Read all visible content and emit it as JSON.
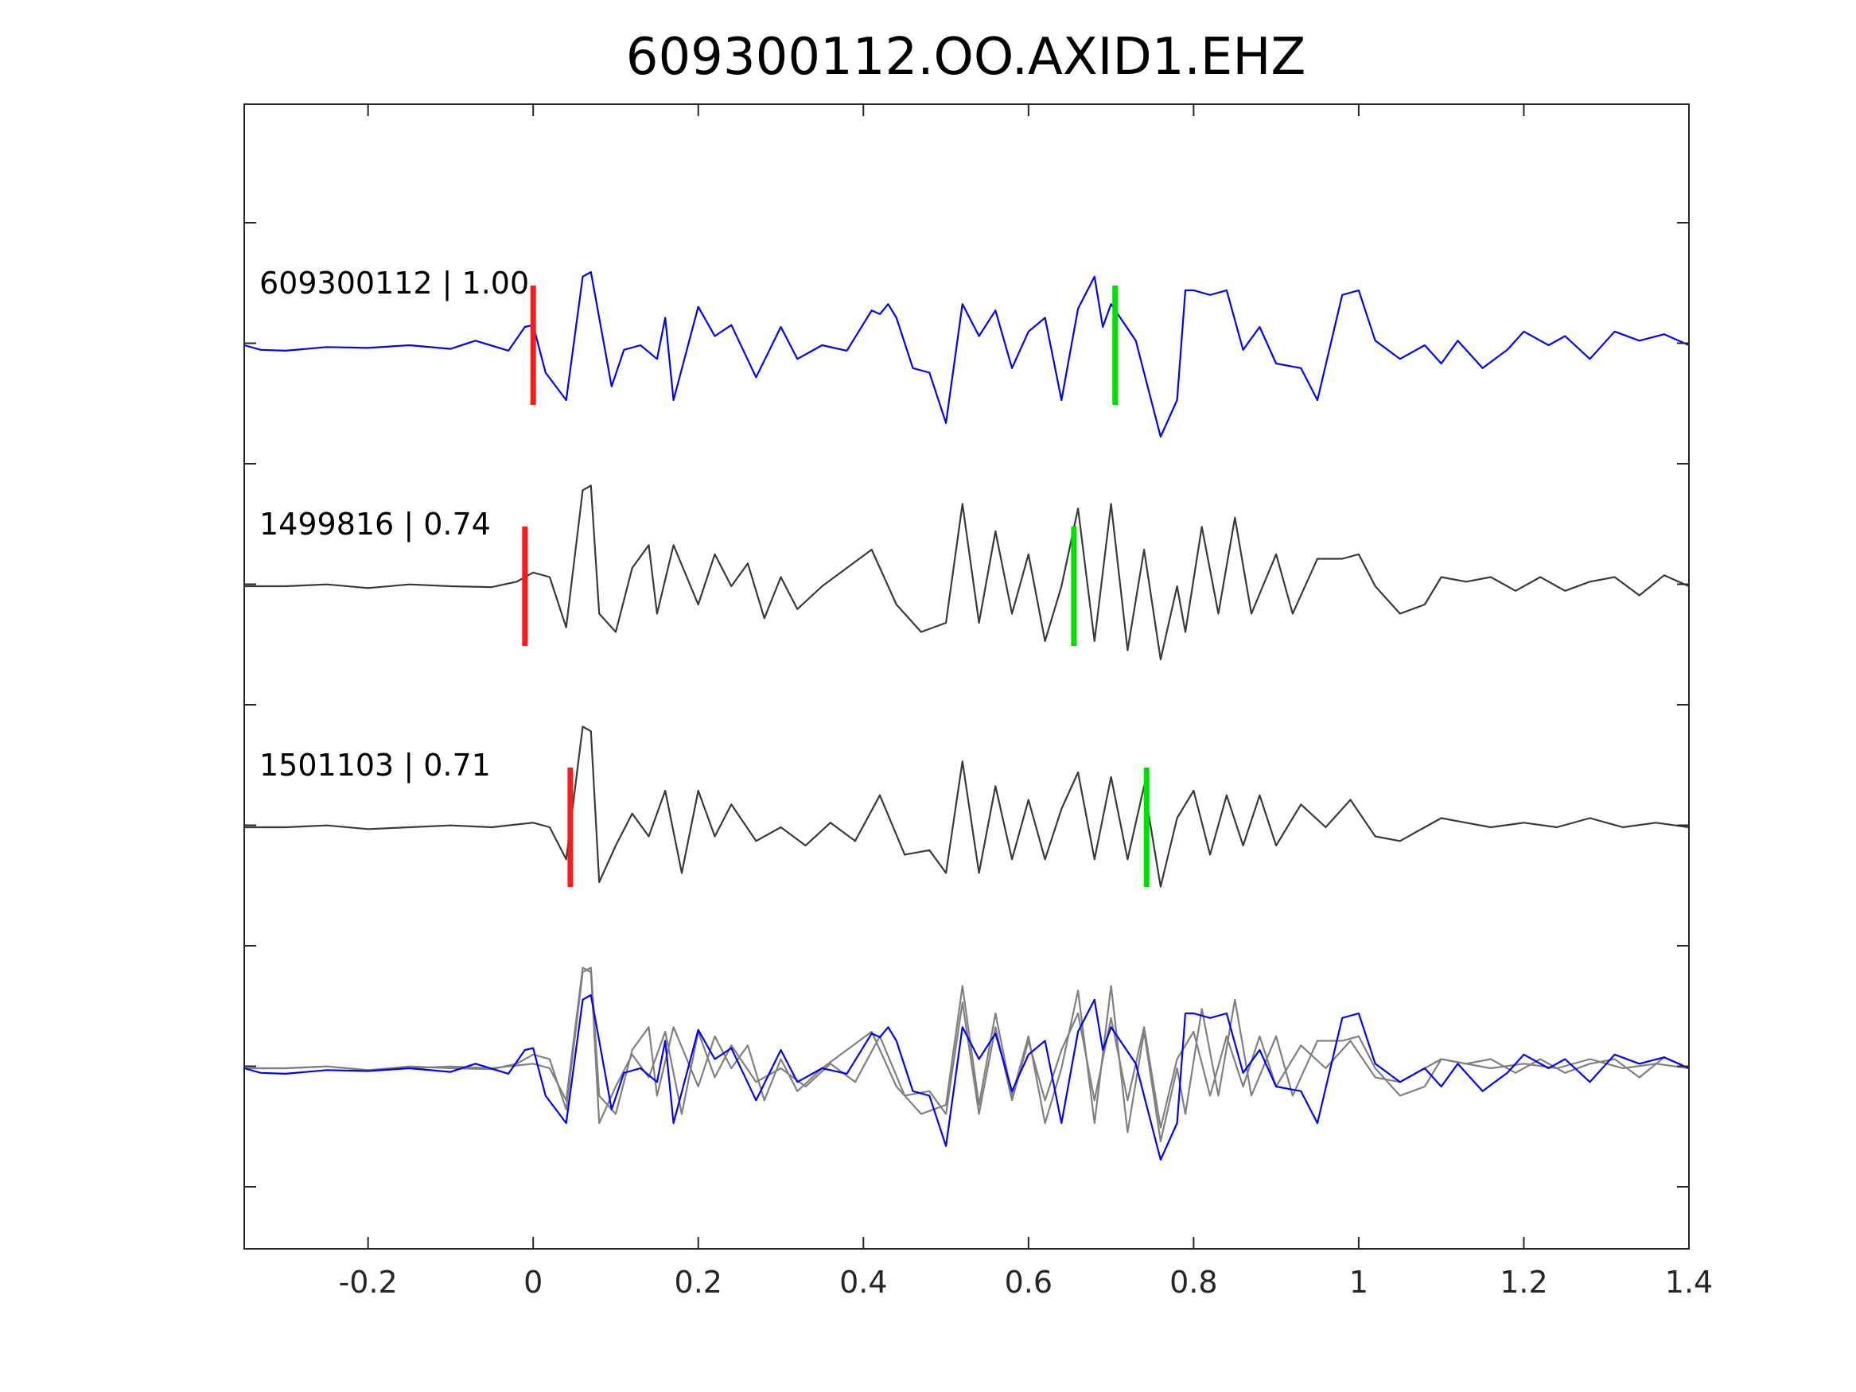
{
  "chart_data": {
    "type": "line",
    "title": "609300112.OO.AXID1.EHZ",
    "xlabel": "",
    "ylabel": "",
    "xlim": [
      -0.35,
      1.4
    ],
    "x_ticks": [
      -0.2,
      0,
      0.2,
      0.4,
      0.6,
      0.8,
      1,
      1.2,
      1.4
    ],
    "x_tick_labels": [
      "-0.2",
      "0",
      "0.2",
      "0.4",
      "0.6",
      "0.8",
      "1",
      "1.2",
      "1.4"
    ],
    "y_tick_count": 9,
    "grid": false,
    "legend": "none",
    "colors": {
      "template": "#0000ff",
      "detection": "#3a3a3a",
      "overlay": "#808080",
      "p_pick": "#ff1a1a",
      "s_pick": "#00dd00",
      "axis": "#262626"
    },
    "traces": [
      {
        "label": "609300112 | 1.00",
        "color": "template",
        "row": 1,
        "p_pick": 0.0,
        "s_pick": 0.705,
        "points": [
          [
            -0.35,
            0.0
          ],
          [
            -0.33,
            -0.05
          ],
          [
            -0.3,
            -0.06
          ],
          [
            -0.25,
            -0.02
          ],
          [
            -0.2,
            -0.03
          ],
          [
            -0.15,
            0.0
          ],
          [
            -0.1,
            -0.04
          ],
          [
            -0.07,
            0.05
          ],
          [
            -0.03,
            -0.06
          ],
          [
            -0.01,
            0.2
          ],
          [
            0.0,
            0.22
          ],
          [
            0.015,
            -0.3
          ],
          [
            0.04,
            -0.6
          ],
          [
            0.06,
            0.75
          ],
          [
            0.07,
            0.8
          ],
          [
            0.095,
            -0.45
          ],
          [
            0.11,
            -0.05
          ],
          [
            0.13,
            0.0
          ],
          [
            0.15,
            -0.15
          ],
          [
            0.16,
            0.3
          ],
          [
            0.17,
            -0.6
          ],
          [
            0.2,
            0.42
          ],
          [
            0.22,
            0.1
          ],
          [
            0.24,
            0.22
          ],
          [
            0.27,
            -0.35
          ],
          [
            0.3,
            0.2
          ],
          [
            0.32,
            -0.15
          ],
          [
            0.35,
            0.0
          ],
          [
            0.38,
            -0.06
          ],
          [
            0.41,
            0.38
          ],
          [
            0.42,
            0.34
          ],
          [
            0.43,
            0.45
          ],
          [
            0.44,
            0.3
          ],
          [
            0.46,
            -0.25
          ],
          [
            0.48,
            -0.3
          ],
          [
            0.5,
            -0.85
          ],
          [
            0.52,
            0.45
          ],
          [
            0.54,
            0.1
          ],
          [
            0.56,
            0.38
          ],
          [
            0.58,
            -0.25
          ],
          [
            0.6,
            0.15
          ],
          [
            0.62,
            0.3
          ],
          [
            0.64,
            -0.6
          ],
          [
            0.66,
            0.4
          ],
          [
            0.68,
            0.75
          ],
          [
            0.69,
            0.2
          ],
          [
            0.7,
            0.45
          ],
          [
            0.73,
            0.05
          ],
          [
            0.76,
            -1.0
          ],
          [
            0.78,
            -0.6
          ],
          [
            0.79,
            0.6
          ],
          [
            0.8,
            0.6
          ],
          [
            0.82,
            0.55
          ],
          [
            0.84,
            0.6
          ],
          [
            0.86,
            -0.05
          ],
          [
            0.88,
            0.2
          ],
          [
            0.9,
            -0.2
          ],
          [
            0.93,
            -0.25
          ],
          [
            0.95,
            -0.6
          ],
          [
            0.98,
            0.55
          ],
          [
            1.0,
            0.6
          ],
          [
            1.02,
            0.05
          ],
          [
            1.05,
            -0.15
          ],
          [
            1.08,
            0.0
          ],
          [
            1.1,
            -0.2
          ],
          [
            1.12,
            0.05
          ],
          [
            1.15,
            -0.25
          ],
          [
            1.18,
            -0.05
          ],
          [
            1.2,
            0.15
          ],
          [
            1.23,
            0.0
          ],
          [
            1.25,
            0.1
          ],
          [
            1.28,
            -0.15
          ],
          [
            1.31,
            0.15
          ],
          [
            1.34,
            0.05
          ],
          [
            1.37,
            0.12
          ],
          [
            1.4,
            0.0
          ]
        ]
      },
      {
        "label": "1499816 | 0.74",
        "color": "detection",
        "row": 2,
        "p_pick": -0.01,
        "s_pick": 0.655,
        "points": [
          [
            -0.35,
            0.0
          ],
          [
            -0.3,
            0.0
          ],
          [
            -0.25,
            0.02
          ],
          [
            -0.2,
            -0.02
          ],
          [
            -0.15,
            0.02
          ],
          [
            -0.1,
            0.0
          ],
          [
            -0.05,
            -0.01
          ],
          [
            -0.02,
            0.05
          ],
          [
            0.0,
            0.15
          ],
          [
            0.02,
            0.1
          ],
          [
            0.04,
            -0.45
          ],
          [
            0.06,
            1.05
          ],
          [
            0.07,
            1.1
          ],
          [
            0.08,
            -0.3
          ],
          [
            0.1,
            -0.5
          ],
          [
            0.12,
            0.2
          ],
          [
            0.14,
            0.45
          ],
          [
            0.15,
            -0.3
          ],
          [
            0.17,
            0.45
          ],
          [
            0.2,
            -0.2
          ],
          [
            0.22,
            0.35
          ],
          [
            0.24,
            0.0
          ],
          [
            0.26,
            0.25
          ],
          [
            0.28,
            -0.35
          ],
          [
            0.3,
            0.1
          ],
          [
            0.32,
            -0.25
          ],
          [
            0.35,
            0.0
          ],
          [
            0.38,
            0.2
          ],
          [
            0.41,
            0.4
          ],
          [
            0.44,
            -0.2
          ],
          [
            0.47,
            -0.5
          ],
          [
            0.5,
            -0.4
          ],
          [
            0.52,
            0.9
          ],
          [
            0.54,
            -0.4
          ],
          [
            0.56,
            0.6
          ],
          [
            0.58,
            -0.3
          ],
          [
            0.6,
            0.35
          ],
          [
            0.62,
            -0.6
          ],
          [
            0.64,
            0.0
          ],
          [
            0.66,
            0.85
          ],
          [
            0.68,
            -0.6
          ],
          [
            0.7,
            0.9
          ],
          [
            0.72,
            -0.7
          ],
          [
            0.74,
            0.4
          ],
          [
            0.76,
            -0.8
          ],
          [
            0.78,
            0.0
          ],
          [
            0.79,
            -0.5
          ],
          [
            0.81,
            0.65
          ],
          [
            0.83,
            -0.3
          ],
          [
            0.85,
            0.75
          ],
          [
            0.87,
            -0.3
          ],
          [
            0.9,
            0.35
          ],
          [
            0.92,
            -0.3
          ],
          [
            0.95,
            0.3
          ],
          [
            0.98,
            0.3
          ],
          [
            1.0,
            0.35
          ],
          [
            1.02,
            0.0
          ],
          [
            1.05,
            -0.3
          ],
          [
            1.08,
            -0.2
          ],
          [
            1.1,
            0.1
          ],
          [
            1.13,
            0.05
          ],
          [
            1.16,
            0.1
          ],
          [
            1.19,
            -0.05
          ],
          [
            1.22,
            0.1
          ],
          [
            1.25,
            -0.05
          ],
          [
            1.28,
            0.05
          ],
          [
            1.31,
            0.1
          ],
          [
            1.34,
            -0.1
          ],
          [
            1.37,
            0.12
          ],
          [
            1.4,
            0.0
          ]
        ]
      },
      {
        "label": "1501103 | 0.71",
        "color": "detection",
        "row": 3,
        "p_pick": 0.045,
        "s_pick": 0.743,
        "points": [
          [
            -0.35,
            0.0
          ],
          [
            -0.3,
            0.0
          ],
          [
            -0.25,
            0.02
          ],
          [
            -0.2,
            -0.02
          ],
          [
            -0.15,
            0.0
          ],
          [
            -0.1,
            0.02
          ],
          [
            -0.05,
            0.0
          ],
          [
            -0.02,
            0.03
          ],
          [
            0.0,
            0.05
          ],
          [
            0.02,
            0.0
          ],
          [
            0.04,
            -0.35
          ],
          [
            0.06,
            1.1
          ],
          [
            0.07,
            1.05
          ],
          [
            0.08,
            -0.6
          ],
          [
            0.1,
            -0.2
          ],
          [
            0.12,
            0.15
          ],
          [
            0.14,
            -0.1
          ],
          [
            0.16,
            0.4
          ],
          [
            0.18,
            -0.5
          ],
          [
            0.2,
            0.4
          ],
          [
            0.22,
            -0.1
          ],
          [
            0.24,
            0.25
          ],
          [
            0.27,
            -0.15
          ],
          [
            0.3,
            0.0
          ],
          [
            0.33,
            -0.2
          ],
          [
            0.36,
            0.05
          ],
          [
            0.39,
            -0.15
          ],
          [
            0.42,
            0.35
          ],
          [
            0.45,
            -0.3
          ],
          [
            0.48,
            -0.25
          ],
          [
            0.5,
            -0.5
          ],
          [
            0.52,
            0.72
          ],
          [
            0.54,
            -0.5
          ],
          [
            0.56,
            0.45
          ],
          [
            0.58,
            -0.35
          ],
          [
            0.6,
            0.3
          ],
          [
            0.62,
            -0.35
          ],
          [
            0.64,
            0.2
          ],
          [
            0.66,
            0.6
          ],
          [
            0.68,
            -0.35
          ],
          [
            0.7,
            0.55
          ],
          [
            0.72,
            -0.35
          ],
          [
            0.74,
            0.45
          ],
          [
            0.76,
            -0.65
          ],
          [
            0.78,
            0.1
          ],
          [
            0.8,
            0.4
          ],
          [
            0.82,
            -0.3
          ],
          [
            0.84,
            0.35
          ],
          [
            0.86,
            -0.2
          ],
          [
            0.88,
            0.35
          ],
          [
            0.9,
            -0.2
          ],
          [
            0.93,
            0.25
          ],
          [
            0.96,
            0.0
          ],
          [
            0.99,
            0.3
          ],
          [
            1.02,
            -0.1
          ],
          [
            1.05,
            -0.15
          ],
          [
            1.08,
            0.0
          ],
          [
            1.1,
            0.1
          ],
          [
            1.13,
            0.05
          ],
          [
            1.16,
            0.0
          ],
          [
            1.2,
            0.05
          ],
          [
            1.24,
            0.0
          ],
          [
            1.28,
            0.1
          ],
          [
            1.32,
            0.0
          ],
          [
            1.36,
            0.05
          ],
          [
            1.4,
            0.0
          ]
        ]
      }
    ],
    "overlay_row": 4
  }
}
